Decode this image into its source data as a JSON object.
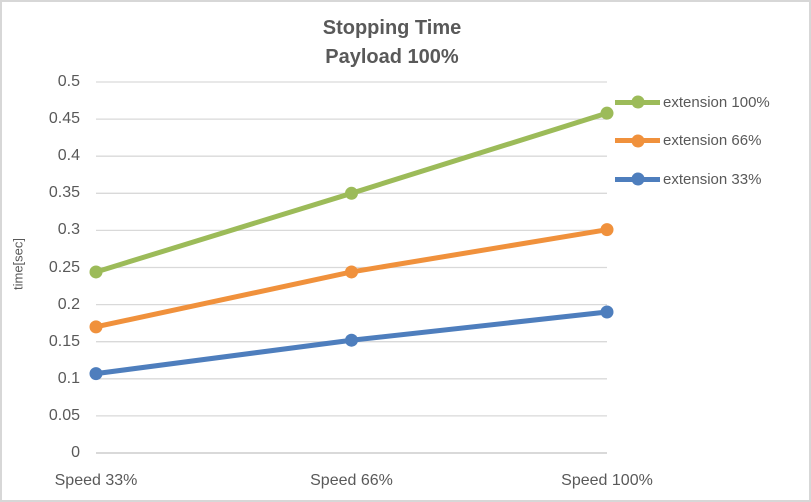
{
  "chart_data": {
    "type": "line",
    "title": "Stopping Time",
    "subtitle": "Payload 100%",
    "ylabel": "time[sec]",
    "xlabel": "",
    "categories": [
      "Speed 33%",
      "Speed 66%",
      "Speed 100%"
    ],
    "series": [
      {
        "name": "extension 100%",
        "color": "#9CBB59",
        "values": [
          0.244,
          0.35,
          0.458
        ]
      },
      {
        "name": "extension 66%",
        "color": "#F0913C",
        "values": [
          0.17,
          0.244,
          0.301
        ]
      },
      {
        "name": "extension 33%",
        "color": "#4E7EBD",
        "values": [
          0.107,
          0.152,
          0.19
        ]
      }
    ],
    "ylim": [
      0,
      0.5
    ],
    "yticks": [
      {
        "value": 0.5,
        "label": "0.5"
      },
      {
        "value": 0.45,
        "label": "0.45"
      },
      {
        "value": 0.4,
        "label": "0.4"
      },
      {
        "value": 0.35,
        "label": "0.35"
      },
      {
        "value": 0.3,
        "label": "0.3"
      },
      {
        "value": 0.25,
        "label": "0.25"
      },
      {
        "value": 0.2,
        "label": "0.2"
      },
      {
        "value": 0.15,
        "label": "0.15"
      },
      {
        "value": 0.1,
        "label": "0.1"
      },
      {
        "value": 0.05,
        "label": "0.05"
      },
      {
        "value": 0,
        "label": "0"
      }
    ],
    "grid": "horizontal",
    "legend_position": "right",
    "marker": "circle"
  },
  "colors": {
    "text": "#595959",
    "gridline": "#D9D9D9",
    "axis_line": "#D9D9D9",
    "background": "#FFFFFF",
    "border": "#D7D7D7"
  }
}
